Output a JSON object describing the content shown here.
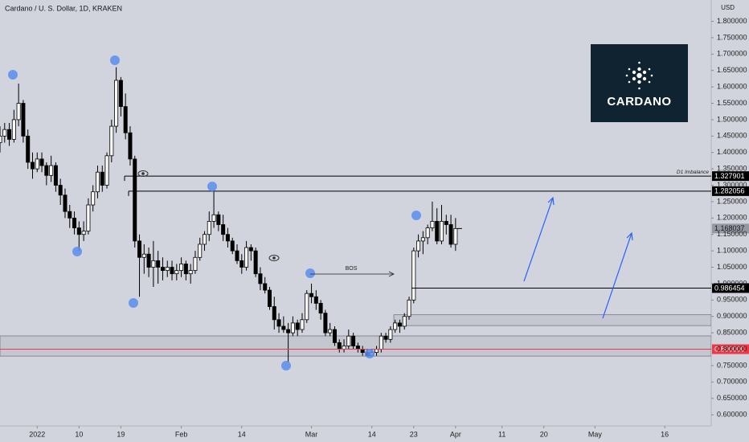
{
  "chart_data": {
    "type": "candlestick",
    "title": "Cardano / U. S. Dollar, 1D, KRAKEN",
    "y_axis_label": "USD",
    "logo_text": "CARDANO",
    "annotation": "BOS",
    "up_color": "#ffffff",
    "down_color": "#000000",
    "outline_color": "#000000",
    "x": [
      "2021-12-24",
      "2021-12-25",
      "2021-12-26",
      "2021-12-27",
      "2021-12-28",
      "2021-12-29",
      "2021-12-30",
      "2021-12-31",
      "2022-01-01",
      "2022-01-02",
      "2022-01-03",
      "2022-01-04",
      "2022-01-05",
      "2022-01-06",
      "2022-01-07",
      "2022-01-08",
      "2022-01-09",
      "2022-01-10",
      "2022-01-11",
      "2022-01-12",
      "2022-01-13",
      "2022-01-14",
      "2022-01-15",
      "2022-01-16",
      "2022-01-17",
      "2022-01-18",
      "2022-01-19",
      "2022-01-20",
      "2022-01-21",
      "2022-01-22",
      "2022-01-23",
      "2022-01-24",
      "2022-01-25",
      "2022-01-26",
      "2022-01-27",
      "2022-01-28",
      "2022-01-29",
      "2022-01-30",
      "2022-01-31",
      "2022-02-01",
      "2022-02-02",
      "2022-02-03",
      "2022-02-04",
      "2022-02-05",
      "2022-02-06",
      "2022-02-07",
      "2022-02-08",
      "2022-02-09",
      "2022-02-10",
      "2022-02-11",
      "2022-02-12",
      "2022-02-13",
      "2022-02-14",
      "2022-02-15",
      "2022-02-16",
      "2022-02-17",
      "2022-02-18",
      "2022-02-19",
      "2022-02-20",
      "2022-02-21",
      "2022-02-22",
      "2022-02-23",
      "2022-02-24",
      "2022-02-25",
      "2022-02-26",
      "2022-02-27",
      "2022-02-28",
      "2022-03-01",
      "2022-03-02",
      "2022-03-03",
      "2022-03-04",
      "2022-03-05",
      "2022-03-06",
      "2022-03-07",
      "2022-03-08",
      "2022-03-09",
      "2022-03-10",
      "2022-03-11",
      "2022-03-12",
      "2022-03-13",
      "2022-03-14",
      "2022-03-15",
      "2022-03-16",
      "2022-03-17",
      "2022-03-18",
      "2022-03-19",
      "2022-03-20",
      "2022-03-21",
      "2022-03-22",
      "2022-03-23",
      "2022-03-24",
      "2022-03-25",
      "2022-03-26",
      "2022-03-27",
      "2022-03-28",
      "2022-03-29",
      "2022-03-30",
      "2022-03-31",
      "2022-04-01"
    ],
    "open": [
      1.43,
      1.45,
      1.47,
      1.44,
      1.5,
      1.55,
      1.45,
      1.37,
      1.35,
      1.38,
      1.36,
      1.33,
      1.36,
      1.3,
      1.27,
      1.22,
      1.2,
      1.17,
      1.15,
      1.16,
      1.24,
      1.28,
      1.34,
      1.3,
      1.39,
      1.48,
      1.62,
      1.54,
      1.46,
      1.38,
      1.13,
      1.08,
      1.09,
      1.05,
      1.07,
      1.05,
      1.04,
      1.05,
      1.03,
      1.04,
      1.06,
      1.03,
      1.04,
      1.08,
      1.12,
      1.15,
      1.19,
      1.21,
      1.18,
      1.15,
      1.13,
      1.1,
      1.07,
      1.05,
      1.11,
      1.1,
      1.03,
      1.0,
      0.98,
      0.93,
      0.89,
      0.87,
      0.86,
      0.85,
      0.88,
      0.86,
      0.89,
      0.97,
      0.96,
      0.94,
      0.91,
      0.85,
      0.86,
      0.82,
      0.8,
      0.81,
      0.84,
      0.81,
      0.8,
      0.79,
      0.78,
      0.79,
      0.8,
      0.84,
      0.83,
      0.86,
      0.88,
      0.87,
      0.9,
      0.95,
      1.1,
      1.13,
      1.14,
      1.17,
      1.19,
      1.13,
      1.19,
      1.18,
      1.12
    ],
    "high": [
      1.48,
      1.49,
      1.49,
      1.53,
      1.61,
      1.56,
      1.47,
      1.4,
      1.4,
      1.4,
      1.37,
      1.39,
      1.37,
      1.32,
      1.29,
      1.24,
      1.22,
      1.19,
      1.19,
      1.26,
      1.3,
      1.36,
      1.36,
      1.4,
      1.5,
      1.66,
      1.63,
      1.58,
      1.48,
      1.39,
      1.15,
      1.12,
      1.11,
      1.13,
      1.1,
      1.08,
      1.07,
      1.07,
      1.06,
      1.08,
      1.07,
      1.06,
      1.1,
      1.14,
      1.16,
      1.22,
      1.28,
      1.22,
      1.21,
      1.17,
      1.14,
      1.12,
      1.09,
      1.13,
      1.12,
      1.11,
      1.05,
      1.02,
      0.99,
      0.96,
      0.91,
      0.9,
      0.88,
      0.9,
      0.89,
      0.91,
      0.98,
      1.0,
      0.98,
      0.95,
      0.92,
      0.88,
      0.87,
      0.83,
      0.83,
      0.86,
      0.85,
      0.82,
      0.81,
      0.8,
      0.8,
      0.81,
      0.85,
      0.85,
      0.87,
      0.89,
      0.89,
      0.91,
      0.96,
      1.11,
      1.15,
      1.16,
      1.18,
      1.25,
      1.23,
      1.24,
      1.21,
      1.21,
      1.2
    ],
    "low": [
      1.4,
      1.43,
      1.42,
      1.43,
      1.48,
      1.43,
      1.35,
      1.32,
      1.34,
      1.34,
      1.3,
      1.31,
      1.28,
      1.24,
      1.2,
      1.17,
      1.15,
      1.1,
      1.13,
      1.15,
      1.22,
      1.26,
      1.28,
      1.29,
      1.37,
      1.46,
      1.51,
      1.44,
      1.36,
      1.11,
      0.96,
      1.03,
      1.02,
      0.99,
      1.0,
      1.01,
      1.02,
      1.01,
      1.01,
      1.02,
      1.01,
      1.0,
      1.03,
      1.07,
      1.1,
      1.13,
      1.17,
      1.16,
      1.13,
      1.11,
      1.09,
      1.06,
      1.03,
      1.04,
      1.07,
      1.02,
      0.98,
      0.97,
      0.92,
      0.86,
      0.85,
      0.85,
      0.76,
      0.84,
      0.84,
      0.85,
      0.88,
      0.94,
      0.92,
      0.89,
      0.84,
      0.84,
      0.81,
      0.79,
      0.79,
      0.8,
      0.8,
      0.79,
      0.78,
      0.78,
      0.78,
      0.78,
      0.79,
      0.82,
      0.82,
      0.85,
      0.85,
      0.86,
      0.89,
      0.94,
      1.08,
      1.09,
      1.12,
      1.16,
      1.12,
      1.12,
      1.15,
      1.11,
      1.1
    ],
    "close": [
      1.45,
      1.47,
      1.44,
      1.5,
      1.55,
      1.45,
      1.37,
      1.35,
      1.38,
      1.36,
      1.33,
      1.36,
      1.3,
      1.27,
      1.22,
      1.2,
      1.17,
      1.15,
      1.16,
      1.24,
      1.28,
      1.34,
      1.3,
      1.39,
      1.48,
      1.62,
      1.54,
      1.46,
      1.38,
      1.13,
      1.08,
      1.09,
      1.05,
      1.07,
      1.05,
      1.04,
      1.05,
      1.03,
      1.04,
      1.06,
      1.03,
      1.04,
      1.08,
      1.12,
      1.15,
      1.19,
      1.21,
      1.18,
      1.15,
      1.13,
      1.1,
      1.07,
      1.05,
      1.11,
      1.1,
      1.03,
      1.0,
      0.98,
      0.93,
      0.89,
      0.87,
      0.86,
      0.85,
      0.88,
      0.86,
      0.89,
      0.97,
      0.96,
      0.94,
      0.91,
      0.85,
      0.86,
      0.82,
      0.8,
      0.81,
      0.84,
      0.81,
      0.8,
      0.79,
      0.78,
      0.79,
      0.8,
      0.84,
      0.83,
      0.86,
      0.88,
      0.87,
      0.9,
      0.95,
      1.1,
      1.13,
      1.14,
      1.17,
      1.19,
      1.13,
      1.19,
      1.18,
      1.12,
      1.168037
    ],
    "levels": [
      {
        "value": 1.327901,
        "note": "D1 Imbalance"
      },
      {
        "value": 1.282056
      },
      {
        "value": 0.986454
      },
      {
        "value": 0.8,
        "label": "0.800000",
        "color": "#f23645"
      }
    ],
    "zones": [
      {
        "low": 0.779,
        "high": 0.8405
      },
      {
        "low": 0.872,
        "high": 0.905
      }
    ],
    "xlim": [
      "2021-12-24",
      "2022-05-26"
    ],
    "xticks": [
      {
        "value": "2022-01-01",
        "label": "2022"
      },
      {
        "value": "2022-01-10",
        "label": "10"
      },
      {
        "value": "2022-01-19",
        "label": "19"
      },
      {
        "value": "2022-02-01",
        "label": "Feb"
      },
      {
        "value": "2022-02-14",
        "label": "14"
      },
      {
        "value": "2022-03-01",
        "label": "Mar"
      },
      {
        "value": "2022-03-14",
        "label": "14"
      },
      {
        "value": "2022-03-23",
        "label": "23"
      },
      {
        "value": "2022-04-01",
        "label": "Apr"
      },
      {
        "value": "2022-04-11",
        "label": "11"
      },
      {
        "value": "2022-04-20",
        "label": "20"
      },
      {
        "value": "2022-05-01",
        "label": "May"
      },
      {
        "value": "2022-05-16",
        "label": "16"
      }
    ],
    "ylim": [
      0.566,
      1.865
    ],
    "yticks": [
      {
        "value": 0.6,
        "label": "0.600000"
      },
      {
        "value": 0.65,
        "label": "0.650000"
      },
      {
        "value": 0.7,
        "label": "0.700000"
      },
      {
        "value": 0.75,
        "label": "0.750000"
      },
      {
        "value": 0.8,
        "label": "0.800000"
      },
      {
        "value": 0.85,
        "label": "0.850000"
      },
      {
        "value": 0.9,
        "label": "0.900000"
      },
      {
        "value": 0.95,
        "label": "0.950000"
      },
      {
        "value": 1.0,
        "label": "1.000000"
      },
      {
        "value": 1.05,
        "label": "1.050000"
      },
      {
        "value": 1.1,
        "label": "1.100000"
      },
      {
        "value": 1.15,
        "label": "1.150000"
      },
      {
        "value": 1.2,
        "label": "1.200000"
      },
      {
        "value": 1.25,
        "label": "1.250000"
      },
      {
        "value": 1.3,
        "label": "1.300000"
      },
      {
        "value": 1.35,
        "label": "1.350000"
      },
      {
        "value": 1.4,
        "label": "1.400000"
      },
      {
        "value": 1.45,
        "label": "1.450000"
      },
      {
        "value": 1.5,
        "label": "1.500000"
      },
      {
        "value": 1.55,
        "label": "1.550000"
      },
      {
        "value": 1.6,
        "label": "1.600000"
      },
      {
        "value": 1.65,
        "label": "1.650000"
      },
      {
        "value": 1.7,
        "label": "1.700000"
      },
      {
        "value": 1.75,
        "label": "1.750000"
      },
      {
        "value": 1.8,
        "label": "1.800000"
      }
    ],
    "grid": false
  }
}
